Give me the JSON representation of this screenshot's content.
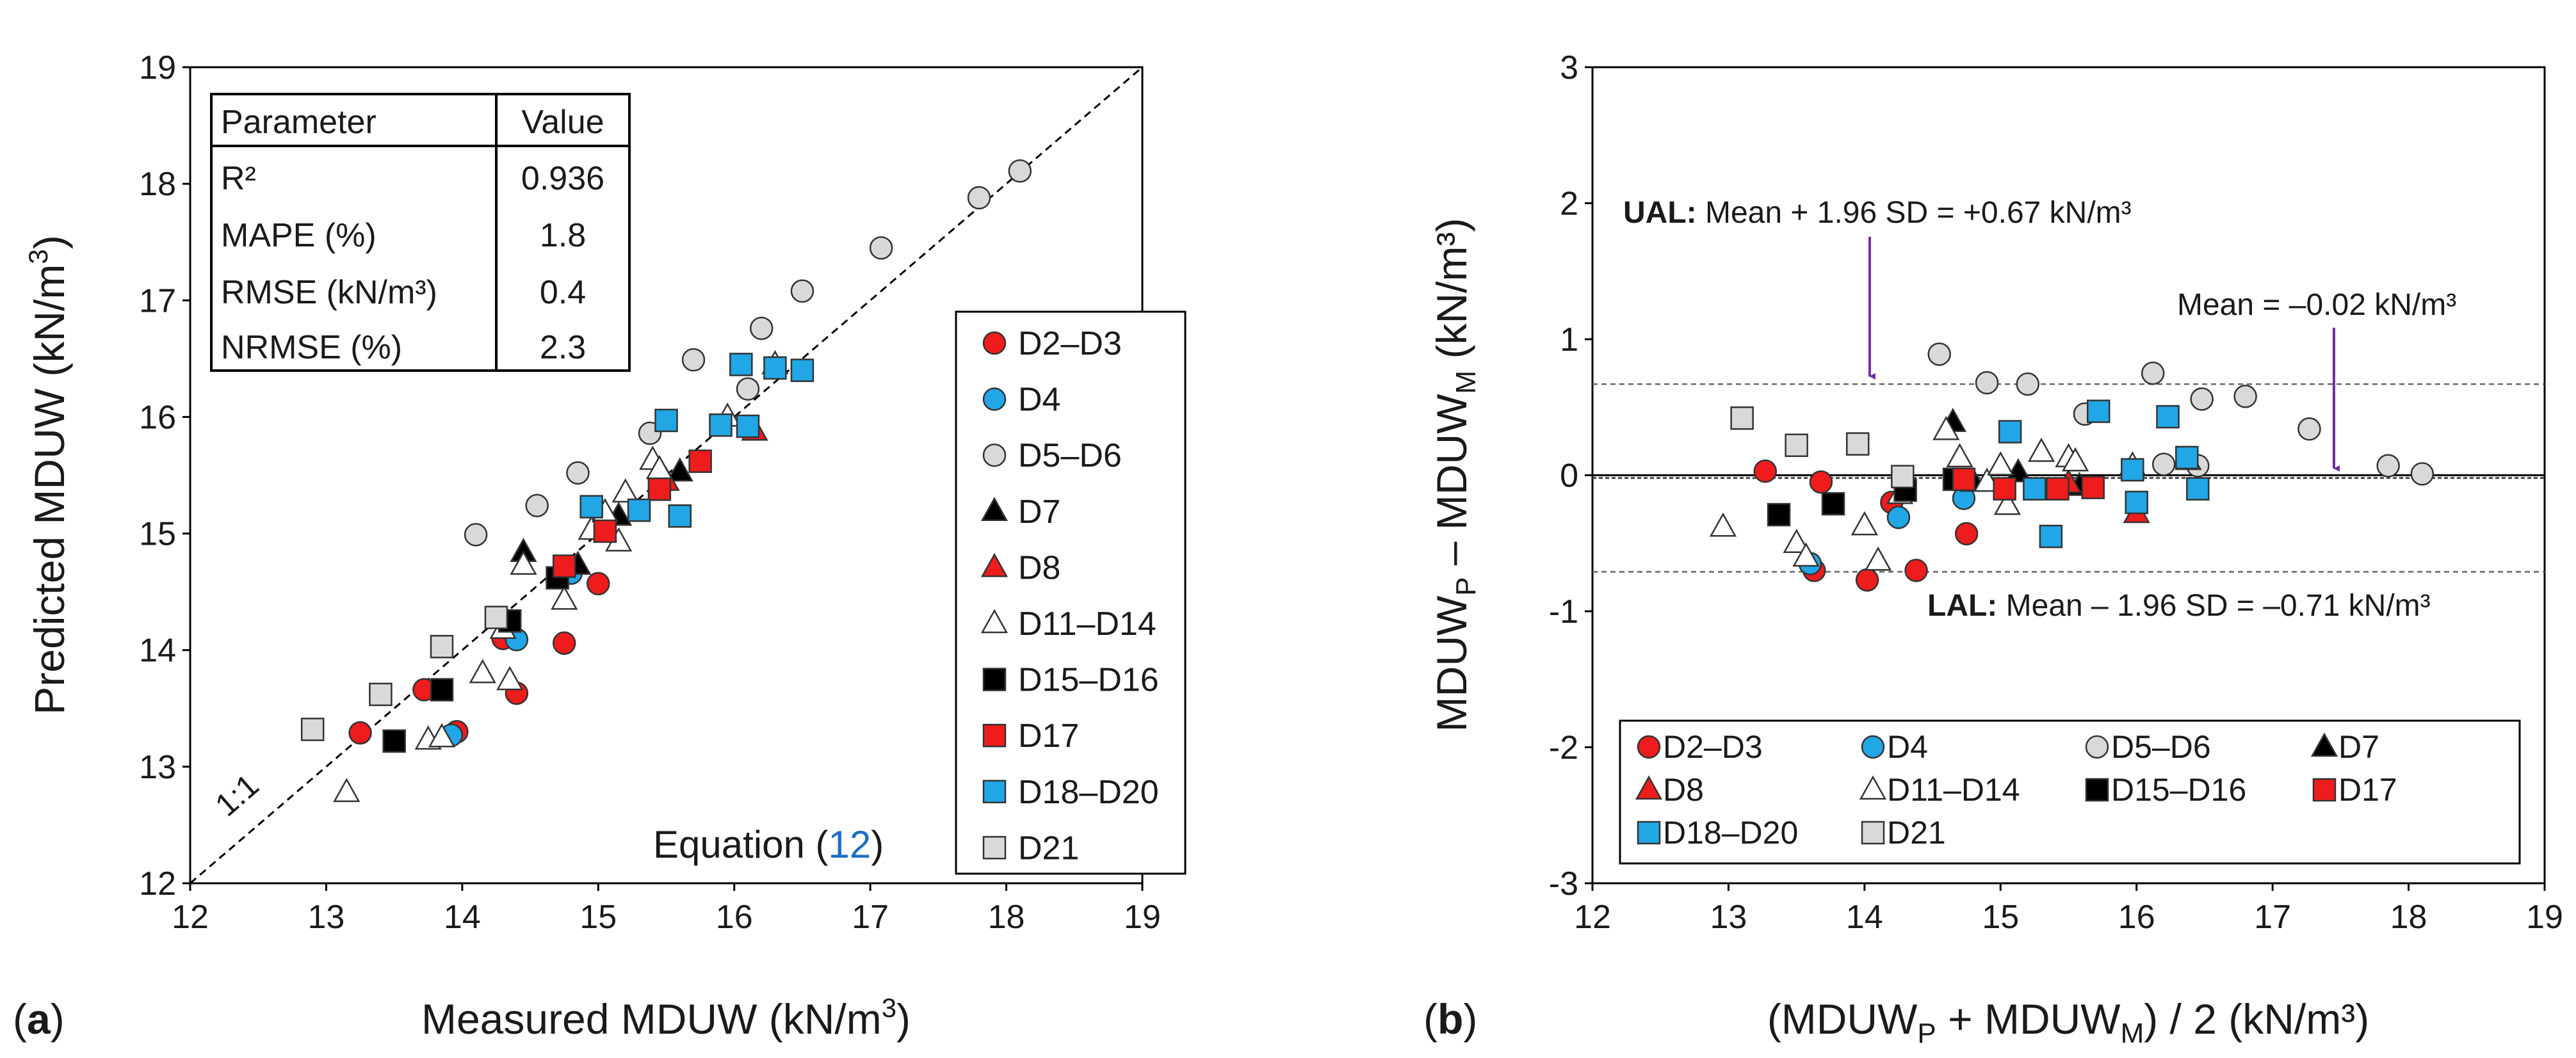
{
  "colors": {
    "red": "#ee1c1c",
    "blue": "#21a6e6",
    "gray": "#d9d9d9",
    "black": "#000000",
    "white": "#ffffff",
    "purple": "#7030a0",
    "link": "#1a6fc4"
  },
  "panel_a_label": "a",
  "panel_b_label": "b",
  "chart_data": [
    {
      "type": "scatter",
      "panel": "(a)",
      "xlabel": "Measured MDUW (kN/m³)",
      "ylabel": "Predicted MDUW (kN/m³)",
      "xlim": [
        12,
        19
      ],
      "ylim": [
        12,
        19
      ],
      "xticks": [
        "12",
        "13",
        "14",
        "15",
        "16",
        "17",
        "18",
        "19"
      ],
      "yticks": [
        "12",
        "13",
        "14",
        "15",
        "16",
        "17",
        "18",
        "19"
      ],
      "identity_line_label": "1:1",
      "equation_text": "Equation (",
      "equation_number": "12",
      "equation_close": ")",
      "table": {
        "header": [
          "Parameter",
          "Value"
        ],
        "rows": [
          [
            "R²",
            "0.936"
          ],
          [
            "MAPE (%)",
            "1.8"
          ],
          [
            "RMSE (kN/m³)",
            "0.4"
          ],
          [
            "NRMSE (%)",
            "2.3"
          ]
        ]
      },
      "legend": [
        "D2–D3",
        "D4",
        "D5–D6",
        "D7",
        "D8",
        "D11–D14",
        "D15–D16",
        "D17",
        "D18–D20",
        "D21"
      ],
      "series": [
        {
          "name": "D2–D3",
          "marker": "circle",
          "color": "#ee1c1c",
          "points": [
            [
              13.25,
              13.29
            ],
            [
              13.72,
              13.66
            ],
            [
              13.96,
              13.3
            ],
            [
              14.3,
              14.1
            ],
            [
              14.4,
              13.63
            ],
            [
              14.75,
              14.06
            ],
            [
              15.0,
              14.57
            ]
          ]
        },
        {
          "name": "D4",
          "marker": "circle",
          "color": "#21a6e6",
          "points": [
            [
              13.92,
              13.27
            ],
            [
              14.4,
              14.09
            ],
            [
              14.8,
              14.66
            ]
          ]
        },
        {
          "name": "D5–D6",
          "marker": "circle",
          "color": "#d9d9d9",
          "points": [
            [
              14.1,
              14.99
            ],
            [
              14.55,
              15.24
            ],
            [
              14.85,
              15.52
            ],
            [
              15.38,
              15.86
            ],
            [
              15.7,
              16.49
            ],
            [
              16.1,
              16.24
            ],
            [
              16.2,
              16.76
            ],
            [
              16.5,
              17.08
            ],
            [
              17.08,
              17.45
            ],
            [
              17.8,
              17.88
            ],
            [
              18.1,
              18.11
            ]
          ]
        },
        {
          "name": "D7",
          "marker": "triangle",
          "color": "#000000",
          "points": [
            [
              14.45,
              14.84
            ],
            [
              14.85,
              14.73
            ],
            [
              15.15,
              15.15
            ],
            [
              15.6,
              15.53
            ]
          ]
        },
        {
          "name": "D8",
          "marker": "triangle",
          "color": "#ee1c1c",
          "points": [
            [
              15.5,
              15.45
            ],
            [
              16.15,
              15.88
            ]
          ]
        },
        {
          "name": "D11–D14",
          "marker": "triangle",
          "color": "#ffffff",
          "points": [
            [
              13.15,
              12.78
            ],
            [
              13.75,
              13.23
            ],
            [
              13.85,
              13.25
            ],
            [
              14.15,
              13.8
            ],
            [
              14.3,
              14.18
            ],
            [
              14.35,
              13.74
            ],
            [
              14.45,
              14.73
            ],
            [
              14.75,
              14.43
            ],
            [
              14.95,
              15.03
            ],
            [
              15.05,
              15.18
            ],
            [
              15.15,
              14.93
            ],
            [
              15.2,
              15.35
            ],
            [
              15.4,
              15.63
            ],
            [
              15.45,
              15.55
            ],
            [
              15.95,
              16.0
            ],
            [
              16.3,
              16.45
            ]
          ]
        },
        {
          "name": "D15–D16",
          "marker": "square",
          "color": "#000000",
          "points": [
            [
              13.5,
              13.22
            ],
            [
              13.85,
              13.66
            ],
            [
              14.35,
              14.25
            ],
            [
              14.7,
              14.62
            ]
          ]
        },
        {
          "name": "D17",
          "marker": "square",
          "color": "#ee1c1c",
          "points": [
            [
              14.75,
              14.72
            ],
            [
              15.05,
              15.02
            ],
            [
              15.45,
              15.38
            ],
            [
              15.75,
              15.62
            ]
          ]
        },
        {
          "name": "D18–D20",
          "marker": "square",
          "color": "#21a6e6",
          "points": [
            [
              14.95,
              15.23
            ],
            [
              15.3,
              15.2
            ],
            [
              15.5,
              15.97
            ],
            [
              15.6,
              15.15
            ],
            [
              15.9,
              15.93
            ],
            [
              16.05,
              16.45
            ],
            [
              16.1,
              15.92
            ],
            [
              16.3,
              16.42
            ],
            [
              16.5,
              16.4
            ]
          ]
        },
        {
          "name": "D21",
          "marker": "square",
          "color": "#d9d9d9",
          "points": [
            [
              12.9,
              13.32
            ],
            [
              13.4,
              13.62
            ],
            [
              13.85,
              14.03
            ],
            [
              14.25,
              14.28
            ]
          ]
        }
      ]
    },
    {
      "type": "scatter",
      "panel": "(b)",
      "xlabel_parts": {
        "open": "(MDUW",
        "sub_p": "P",
        "plus": " + MDUW",
        "sub_m": "M",
        "tail": ") / 2 (kN/m³)"
      },
      "ylabel_parts": {
        "a": "MDUW",
        "sub_p": "P",
        "b": " – MDUW",
        "sub_m": "M",
        "c": " (kN/m³)"
      },
      "xlim": [
        12,
        19
      ],
      "ylim": [
        -3,
        3
      ],
      "xticks": [
        "12",
        "13",
        "14",
        "15",
        "16",
        "17",
        "18",
        "19"
      ],
      "yticks": [
        "-3",
        "-2",
        "-1",
        "0",
        "1",
        "2",
        "3"
      ],
      "mean": -0.02,
      "upper_limit": 0.67,
      "lower_limit": -0.71,
      "annotations": {
        "ual_bold": "UAL:",
        "ual_text": " Mean + 1.96 SD = +0.67 kN/m³",
        "lal_bold": "LAL:",
        "lal_text": " Mean – 1.96 SD = –0.71 kN/m³",
        "mean_text": "Mean = –0.02 kN/m³"
      },
      "legend": [
        "D2–D3",
        "D4",
        "D5–D6",
        "D7",
        "D8",
        "D11–D14",
        "D15–D16",
        "D17",
        "D18–D20",
        "D21"
      ],
      "series": [
        {
          "name": "D2–D3",
          "marker": "circle",
          "color": "#ee1c1c",
          "points": [
            [
              13.27,
              0.03
            ],
            [
              13.63,
              -0.7
            ],
            [
              13.68,
              -0.05
            ],
            [
              14.02,
              -0.77
            ],
            [
              14.38,
              -0.7
            ],
            [
              14.2,
              -0.2
            ],
            [
              14.75,
              -0.43
            ]
          ]
        },
        {
          "name": "D4",
          "marker": "circle",
          "color": "#21a6e6",
          "points": [
            [
              13.6,
              -0.65
            ],
            [
              14.25,
              -0.31
            ],
            [
              14.73,
              -0.17
            ]
          ]
        },
        {
          "name": "D5–D6",
          "marker": "circle",
          "color": "#d9d9d9",
          "points": [
            [
              14.55,
              0.89
            ],
            [
              14.9,
              0.68
            ],
            [
              15.2,
              0.67
            ],
            [
              15.62,
              0.45
            ],
            [
              16.12,
              0.75
            ],
            [
              16.48,
              0.56
            ],
            [
              16.8,
              0.58
            ],
            [
              17.27,
              0.34
            ],
            [
              17.85,
              0.07
            ],
            [
              18.1,
              0.01
            ],
            [
              16.2,
              0.08
            ],
            [
              16.45,
              0.07
            ]
          ]
        },
        {
          "name": "D7",
          "marker": "triangle",
          "color": "#000000",
          "points": [
            [
              14.65,
              0.39
            ],
            [
              14.8,
              -0.05
            ],
            [
              15.13,
              0.02
            ],
            [
              15.58,
              -0.08
            ]
          ]
        },
        {
          "name": "D8",
          "marker": "triangle",
          "color": "#ee1c1c",
          "points": [
            [
              15.5,
              -0.06
            ],
            [
              16.0,
              -0.28
            ]
          ]
        },
        {
          "name": "D11–D14",
          "marker": "triangle",
          "color": "#ffffff",
          "points": [
            [
              12.96,
              -0.38
            ],
            [
              13.5,
              -0.5
            ],
            [
              13.57,
              -0.6
            ],
            [
              14.0,
              -0.37
            ],
            [
              14.1,
              -0.63
            ],
            [
              14.26,
              -0.14
            ],
            [
              14.6,
              0.33
            ],
            [
              14.7,
              0.13
            ],
            [
              14.9,
              -0.05
            ],
            [
              15.0,
              0.07
            ],
            [
              15.05,
              -0.22
            ],
            [
              15.3,
              0.17
            ],
            [
              15.5,
              0.13
            ],
            [
              15.55,
              0.1
            ],
            [
              15.97,
              0.07
            ],
            [
              16.38,
              0.11
            ]
          ]
        },
        {
          "name": "D15–D16",
          "marker": "square",
          "color": "#000000",
          "points": [
            [
              13.37,
              -0.29
            ],
            [
              13.77,
              -0.21
            ],
            [
              14.3,
              -0.11
            ],
            [
              14.66,
              -0.03
            ]
          ]
        },
        {
          "name": "D17",
          "marker": "square",
          "color": "#ee1c1c",
          "points": [
            [
              14.73,
              -0.03
            ],
            [
              15.03,
              -0.1
            ],
            [
              15.42,
              -0.1
            ],
            [
              15.68,
              -0.09
            ]
          ]
        },
        {
          "name": "D18–D20",
          "marker": "square",
          "color": "#21a6e6",
          "points": [
            [
              15.07,
              0.32
            ],
            [
              15.25,
              -0.1
            ],
            [
              15.37,
              -0.45
            ],
            [
              15.72,
              0.47
            ],
            [
              15.97,
              0.04
            ],
            [
              16.0,
              -0.2
            ],
            [
              16.23,
              0.43
            ],
            [
              16.37,
              0.13
            ],
            [
              16.45,
              -0.1
            ]
          ]
        },
        {
          "name": "D21",
          "marker": "square",
          "color": "#d9d9d9",
          "points": [
            [
              13.1,
              0.42
            ],
            [
              13.5,
              0.22
            ],
            [
              13.95,
              0.23
            ],
            [
              14.28,
              -0.01
            ]
          ]
        }
      ]
    }
  ]
}
